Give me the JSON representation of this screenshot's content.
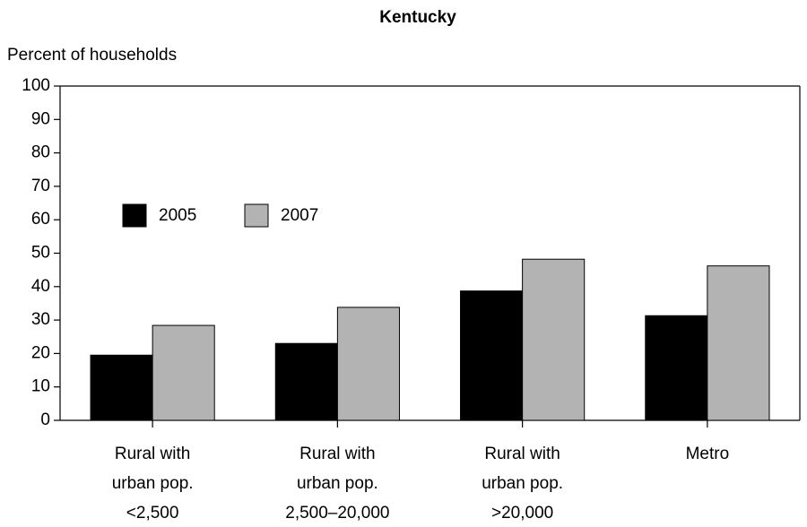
{
  "chart_data": {
    "type": "bar",
    "title": "Kentucky",
    "y_label": "Percent of households",
    "categories": [
      [
        "Rural with",
        "urban pop.",
        "<2,500"
      ],
      [
        "Rural with",
        "urban pop.",
        "2,500–20,000"
      ],
      [
        "Rural with",
        "urban pop.",
        ">20,000"
      ],
      [
        "Metro"
      ]
    ],
    "series": [
      {
        "name": "2005",
        "color": "#000000",
        "values": [
          19.5,
          23,
          38.7,
          31.3
        ]
      },
      {
        "name": "2007",
        "color": "#b3b3b3",
        "values": [
          28.4,
          33.8,
          48.2,
          46.2
        ]
      }
    ],
    "ylim": [
      0,
      100
    ],
    "yticks": [
      0,
      10,
      20,
      30,
      40,
      50,
      60,
      70,
      80,
      90,
      100
    ],
    "grid": false
  }
}
